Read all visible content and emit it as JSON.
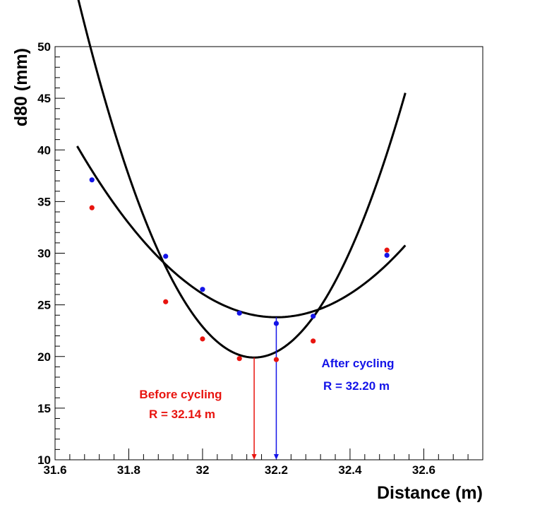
{
  "chart_data": {
    "type": "scatter",
    "title": "",
    "xlabel": "Distance (m)",
    "ylabel": "d80 (mm)",
    "xlim": [
      31.6,
      32.76
    ],
    "ylim": [
      10,
      50
    ],
    "x_ticks": [
      31.6,
      31.8,
      32,
      32.2,
      32.4,
      32.6
    ],
    "x_tick_labels": [
      "31.6",
      "31.8",
      "32",
      "32.2",
      "32.4",
      "32.6"
    ],
    "y_ticks": [
      10,
      15,
      20,
      25,
      30,
      35,
      40,
      45,
      50
    ],
    "y_tick_labels": [
      "10",
      "15",
      "20",
      "25",
      "30",
      "35",
      "40",
      "45",
      "50"
    ],
    "grid": false,
    "series": [
      {
        "name": "Before cycling",
        "color": "#e8140f",
        "x": [
          31.7,
          31.9,
          32.0,
          32.1,
          32.2,
          32.3,
          32.5
        ],
        "y": [
          34.4,
          25.3,
          21.7,
          19.8,
          19.7,
          21.5,
          30.3
        ],
        "fit": {
          "x_min": 31.66,
          "x_max": 32.55,
          "vertex_x": 32.14,
          "vertex_y": 19.9,
          "a": 152.4
        }
      },
      {
        "name": "After cycling",
        "color": "#1414e8",
        "x": [
          31.7,
          31.9,
          32.0,
          32.1,
          32.2,
          32.3,
          32.5
        ],
        "y": [
          37.1,
          29.7,
          26.5,
          24.2,
          23.2,
          23.9,
          29.8
        ],
        "fit": {
          "x_min": 31.66,
          "x_max": 32.55,
          "vertex_x": 32.2,
          "vertex_y": 23.8,
          "a": 56.8
        }
      }
    ],
    "annotations": [
      {
        "id": "before",
        "title": "Before cycling",
        "value": "R = 32.14 m",
        "color": "#e8140f",
        "arrow_x": 32.14
      },
      {
        "id": "after",
        "title": "After cycling",
        "value": "R = 32.20 m",
        "color": "#1414e8",
        "arrow_x": 32.2
      }
    ]
  }
}
